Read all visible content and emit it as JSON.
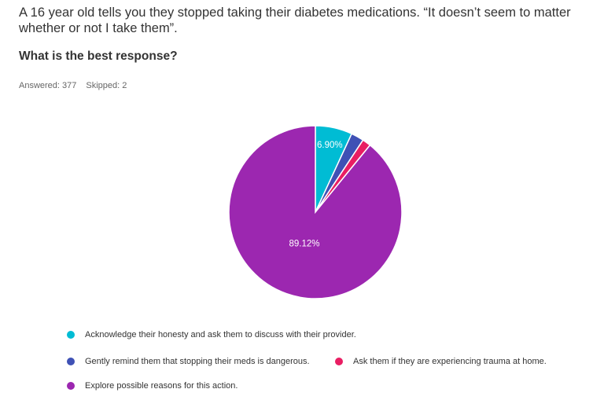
{
  "question": {
    "text_line1": "A 16 year old tells you they stopped taking their diabetes medications. “It doesn’t seem to matter",
    "text_line2": "whether or not I take them”."
  },
  "subheading": "What is the best response?",
  "stats": {
    "answered": "Answered: 377",
    "skipped": "Skipped: 2"
  },
  "chart_data": {
    "type": "pie",
    "categories": [
      "Acknowledge their honesty and ask them to discuss with their provider.",
      "Gently remind them that stopping their meds is dangerous.",
      "Ask them if they are experiencing trauma at home.",
      "Explore possible reasons for this action."
    ],
    "values": [
      6.9,
      2.39,
      1.59,
      89.12
    ],
    "data_labels": [
      "6.90%",
      "",
      "",
      "89.12%"
    ],
    "colors": [
      "#00bcd4",
      "#3f51b5",
      "#e91e63",
      "#9c27b0"
    ],
    "start_angle": "12 o'clock",
    "direction": "clockwise",
    "legend_position": "bottom"
  }
}
